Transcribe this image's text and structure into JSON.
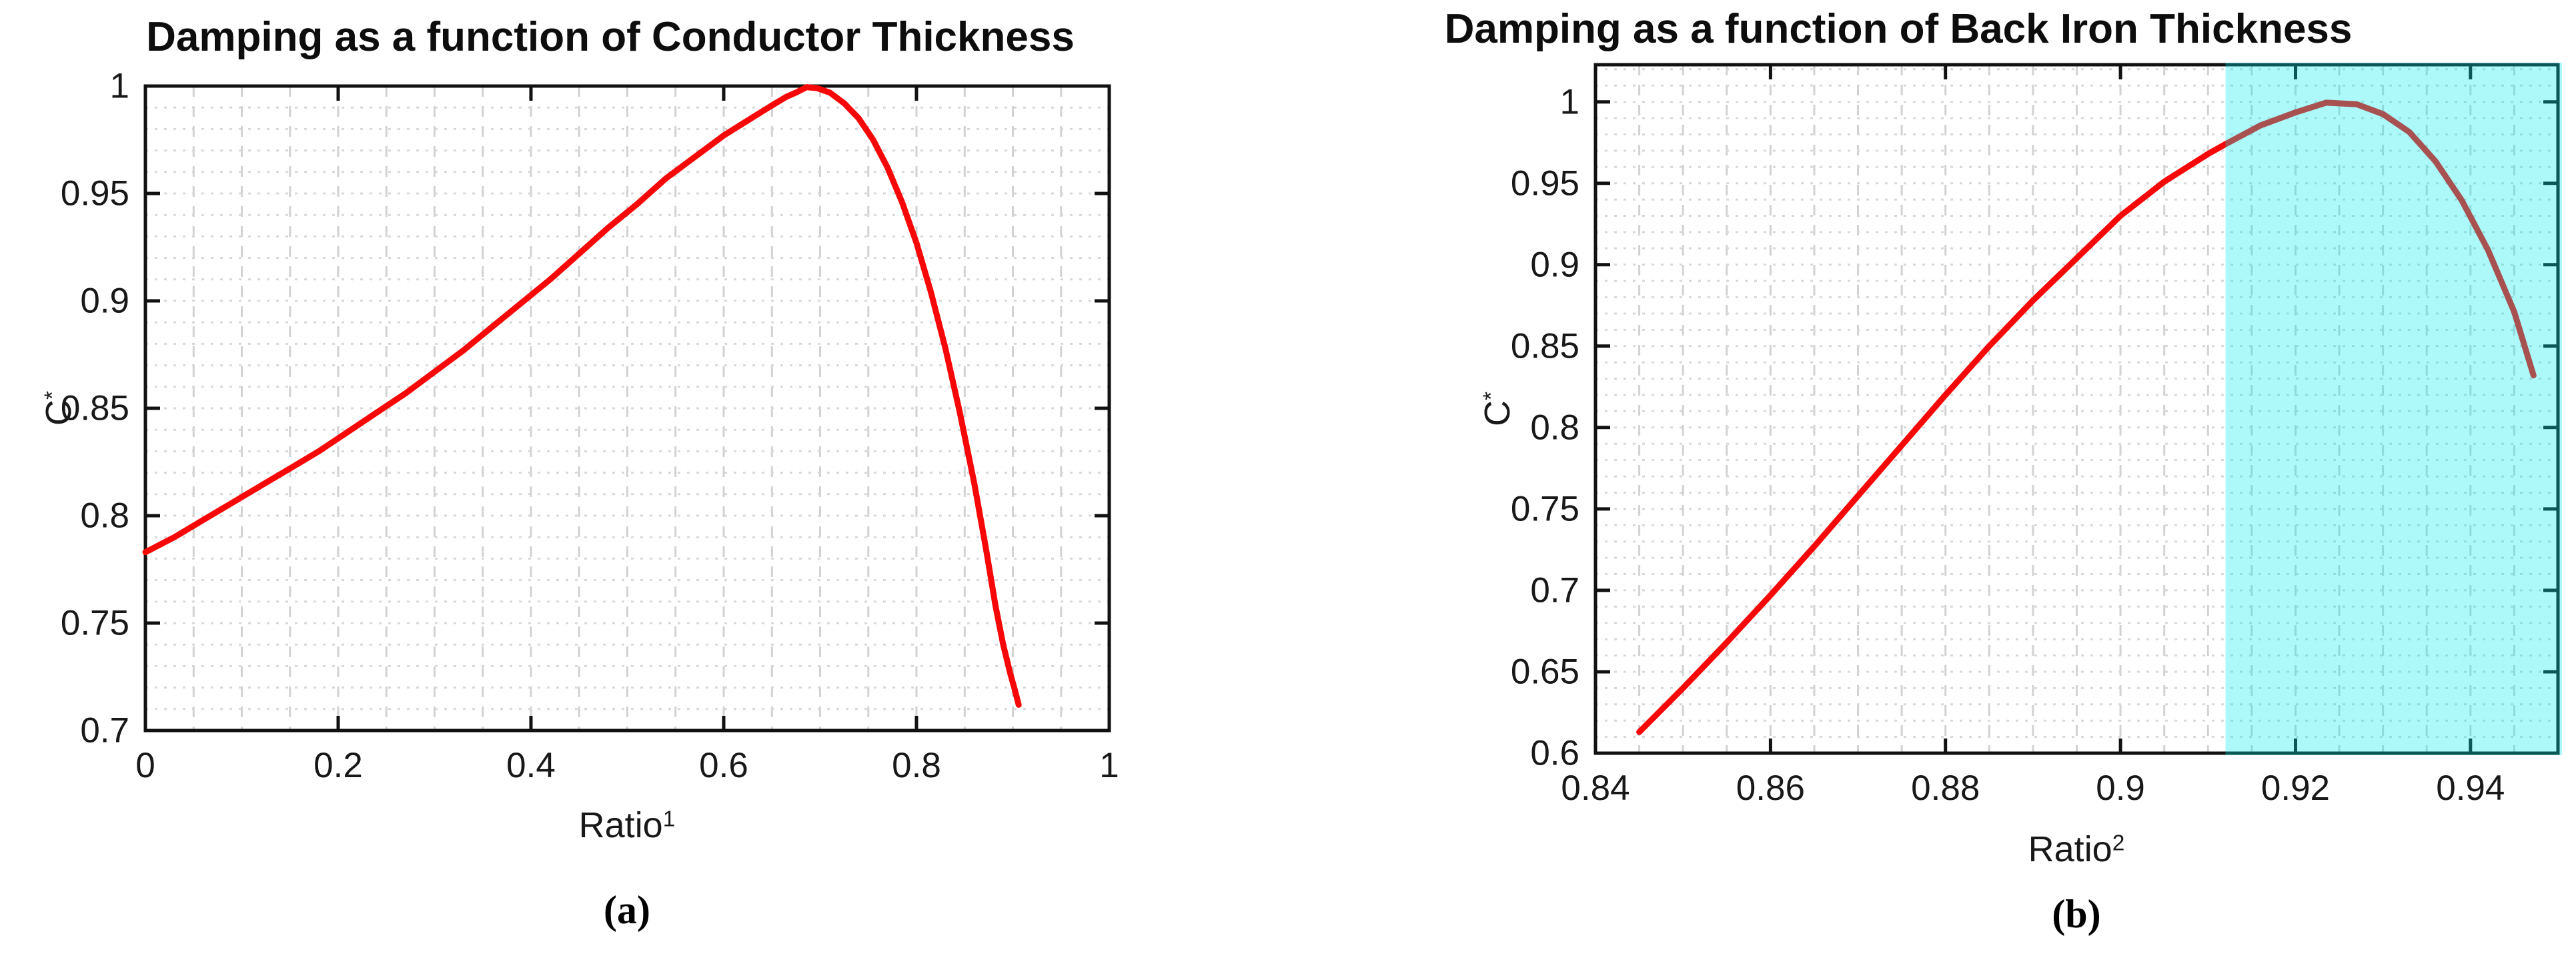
{
  "figure": {
    "background": "#ffffff",
    "axis_color": "#111111",
    "tick_label_color": "#181818",
    "grid_color_vertical": "#d2d2d2",
    "grid_color_horizontal": "#d8d8d8"
  },
  "chart_data": [
    {
      "id": "a",
      "type": "line",
      "title": "Damping as a function of Conductor Thickness",
      "xlabel": {
        "base": "Ratio",
        "sup": "1"
      },
      "ylabel": {
        "base": "C",
        "sup": "*"
      },
      "caption": "(a)",
      "axes": {
        "xlim": [
          0,
          1
        ],
        "ylim": [
          0.7,
          1.0
        ],
        "xticks": {
          "values": [
            0,
            0.2,
            0.4,
            0.6,
            0.8,
            1
          ],
          "labels": [
            "0",
            "0.2",
            "0.4",
            "0.6",
            "0.8",
            "1"
          ]
        },
        "yticks": {
          "values": [
            0.7,
            0.75,
            0.8,
            0.85,
            0.9,
            0.95,
            1.0
          ],
          "labels": [
            "0.7",
            "0.75",
            "0.8",
            "0.85",
            "0.9",
            "0.95",
            "1"
          ]
        },
        "x_minor_step": 0.05,
        "y_minor_step": 0.01,
        "grid": true,
        "legend": "none"
      },
      "line": {
        "color": "#f70808",
        "width": 9
      },
      "points": [
        [
          0.0,
          0.783
        ],
        [
          0.03,
          0.79
        ],
        [
          0.06,
          0.798
        ],
        [
          0.09,
          0.806
        ],
        [
          0.12,
          0.814
        ],
        [
          0.15,
          0.822
        ],
        [
          0.18,
          0.83
        ],
        [
          0.21,
          0.839
        ],
        [
          0.24,
          0.848
        ],
        [
          0.27,
          0.857
        ],
        [
          0.3,
          0.867
        ],
        [
          0.33,
          0.877
        ],
        [
          0.36,
          0.888
        ],
        [
          0.39,
          0.899
        ],
        [
          0.42,
          0.91
        ],
        [
          0.45,
          0.922
        ],
        [
          0.48,
          0.934
        ],
        [
          0.51,
          0.945
        ],
        [
          0.54,
          0.957
        ],
        [
          0.57,
          0.967
        ],
        [
          0.6,
          0.977
        ],
        [
          0.625,
          0.984
        ],
        [
          0.65,
          0.991
        ],
        [
          0.665,
          0.995
        ],
        [
          0.675,
          0.997
        ],
        [
          0.686,
          0.9995
        ],
        [
          0.697,
          0.999
        ],
        [
          0.71,
          0.997
        ],
        [
          0.725,
          0.992
        ],
        [
          0.74,
          0.985
        ],
        [
          0.755,
          0.975
        ],
        [
          0.77,
          0.962
        ],
        [
          0.785,
          0.946
        ],
        [
          0.8,
          0.927
        ],
        [
          0.815,
          0.904
        ],
        [
          0.83,
          0.878
        ],
        [
          0.845,
          0.848
        ],
        [
          0.86,
          0.815
        ],
        [
          0.872,
          0.785
        ],
        [
          0.882,
          0.758
        ],
        [
          0.89,
          0.74
        ],
        [
          0.897,
          0.727
        ],
        [
          0.902,
          0.719
        ],
        [
          0.906,
          0.712
        ]
      ]
    },
    {
      "id": "b",
      "type": "line",
      "title": "Damping as a function of Back Iron Thickness",
      "xlabel": {
        "base": "Ratio",
        "sup": "2"
      },
      "ylabel": {
        "base": "C",
        "sup": "*"
      },
      "caption": "(b)",
      "axes": {
        "xlim": [
          0.84,
          0.95
        ],
        "ylim": [
          0.6,
          1.0228
        ],
        "xticks": {
          "values": [
            0.84,
            0.86,
            0.88,
            0.9,
            0.92,
            0.94
          ],
          "labels": [
            "0.84",
            "0.86",
            "0.88",
            "0.9",
            "0.92",
            "0.94"
          ]
        },
        "yticks": {
          "values": [
            0.6,
            0.65,
            0.7,
            0.75,
            0.8,
            0.85,
            0.9,
            0.95,
            1.0
          ],
          "labels": [
            "0.6",
            "0.65",
            "0.7",
            "0.75",
            "0.8",
            "0.85",
            "0.9",
            "0.95",
            "1"
          ]
        },
        "x_minor_step": 0.005,
        "y_minor_step": 0.01,
        "grid": true,
        "legend": "none"
      },
      "line": {
        "color": "#f70808",
        "width": 9
      },
      "highlight": {
        "x_start": 0.912,
        "x_end": 0.95,
        "fill_rgba": [
          0,
          236,
          236,
          0.32
        ],
        "name": "optimal-region"
      },
      "points": [
        [
          0.845,
          0.613
        ],
        [
          0.85,
          0.64
        ],
        [
          0.855,
          0.668
        ],
        [
          0.86,
          0.697
        ],
        [
          0.865,
          0.727
        ],
        [
          0.87,
          0.758
        ],
        [
          0.875,
          0.789
        ],
        [
          0.88,
          0.82
        ],
        [
          0.885,
          0.85
        ],
        [
          0.89,
          0.878
        ],
        [
          0.895,
          0.904
        ],
        [
          0.9,
          0.93
        ],
        [
          0.905,
          0.951
        ],
        [
          0.91,
          0.968
        ],
        [
          0.912,
          0.974
        ],
        [
          0.916,
          0.9855
        ],
        [
          0.92,
          0.9935
        ],
        [
          0.9235,
          0.9995
        ],
        [
          0.927,
          0.9985
        ],
        [
          0.93,
          0.9925
        ],
        [
          0.933,
          0.9815
        ],
        [
          0.936,
          0.9635
        ],
        [
          0.939,
          0.9395
        ],
        [
          0.942,
          0.909
        ],
        [
          0.945,
          0.871
        ],
        [
          0.9472,
          0.832
        ]
      ]
    }
  ]
}
